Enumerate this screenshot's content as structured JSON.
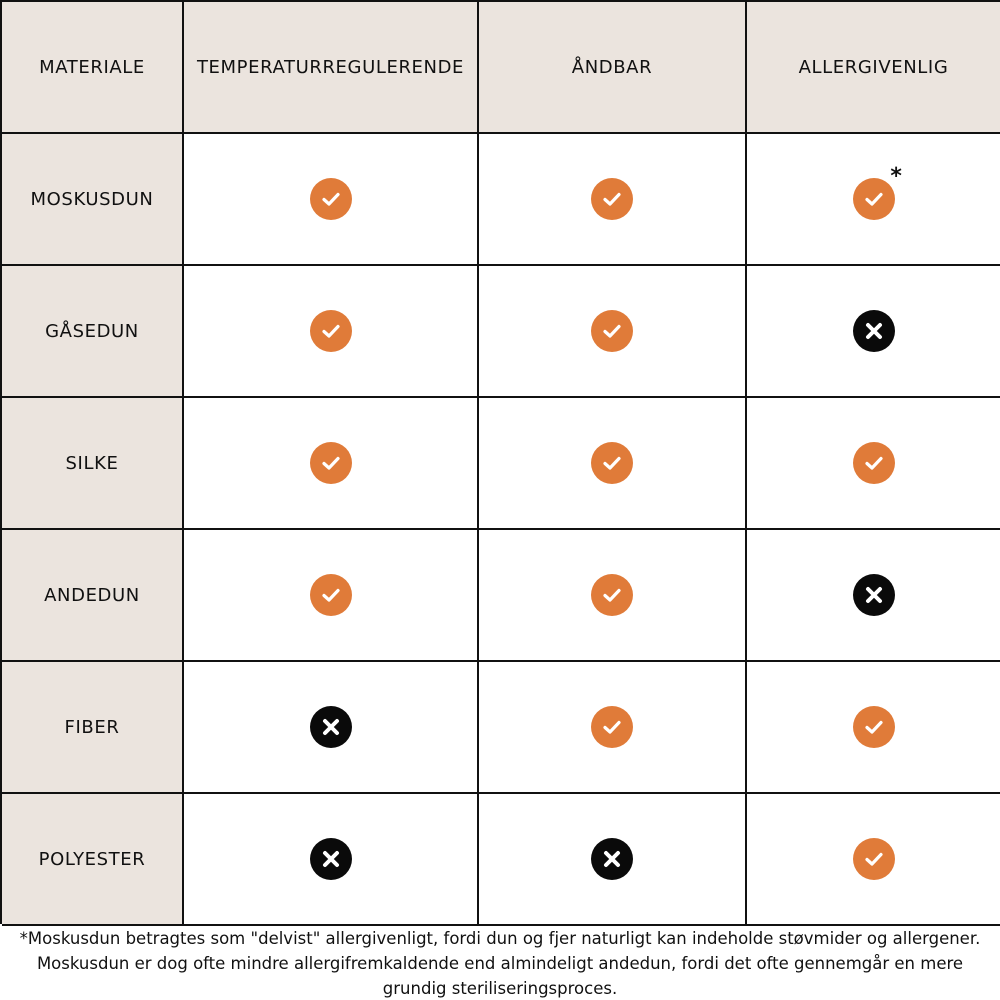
{
  "table": {
    "headers": [
      "MATERIALE",
      "TEMPERATURREGULERENDE",
      "ÅNDBAR",
      "ALLERGIVENLIG"
    ],
    "rows": [
      {
        "material": "MOSKUSDUN",
        "values": [
          "check",
          "check",
          "check"
        ],
        "asterisk_col": 2
      },
      {
        "material": "GÅSEDUN",
        "values": [
          "check",
          "check",
          "cross"
        ]
      },
      {
        "material": "SILKE",
        "values": [
          "check",
          "check",
          "check"
        ]
      },
      {
        "material": "ANDEDUN",
        "values": [
          "check",
          "check",
          "cross"
        ]
      },
      {
        "material": "FIBER",
        "values": [
          "cross",
          "check",
          "check"
        ]
      },
      {
        "material": "POLYESTER",
        "values": [
          "cross",
          "cross",
          "check"
        ]
      }
    ],
    "asterisk_symbol": "*"
  },
  "footnote": {
    "line1": "*Moskusdun betragtes som \"delvist\" allergivenligt, fordi dun og fjer naturligt kan indeholde støvmider og allergener.",
    "line2": "Moskusdun er dog ofte mindre allergifremkaldende end almindeligt andedun, fordi det ofte gennemgår en mere",
    "line3": "grundig steriliseringsproces."
  },
  "colors": {
    "header_bg": "#ebe4de",
    "check": "#e07b39",
    "cross": "#0a0a0a",
    "border": "#111111"
  },
  "icons": {
    "check": "check-circle-icon",
    "cross": "x-circle-icon"
  }
}
